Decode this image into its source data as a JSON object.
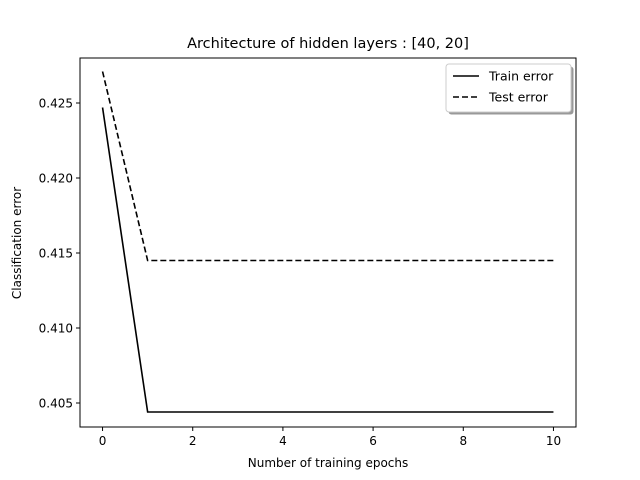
{
  "chart_data": {
    "type": "line",
    "title": "Architecture of hidden layers : [40, 20]",
    "xlabel": "Number of training epochs",
    "ylabel": "Classification error",
    "xlim": [
      -0.5,
      10.5
    ],
    "ylim": [
      0.4034,
      0.428
    ],
    "xticks": [
      0,
      2,
      4,
      6,
      8,
      10
    ],
    "xtick_labels": [
      "0",
      "2",
      "4",
      "6",
      "8",
      "10"
    ],
    "yticks": [
      0.405,
      0.41,
      0.415,
      0.42,
      0.425
    ],
    "ytick_labels": [
      "0.405",
      "0.410",
      "0.415",
      "0.420",
      "0.425"
    ],
    "grid": false,
    "legend": "top-right",
    "x": [
      0,
      1,
      2,
      3,
      4,
      5,
      6,
      7,
      8,
      9,
      10
    ],
    "series": [
      {
        "name": "Train error",
        "style": "solid",
        "color": "#000000",
        "values": [
          0.4247,
          0.4044,
          0.4044,
          0.4044,
          0.4044,
          0.4044,
          0.4044,
          0.4044,
          0.4044,
          0.4044,
          0.4044
        ]
      },
      {
        "name": "Test error",
        "style": "dashed",
        "color": "#000000",
        "values": [
          0.4271,
          0.4145,
          0.4145,
          0.4145,
          0.4145,
          0.4145,
          0.4145,
          0.4145,
          0.4145,
          0.4145,
          0.4145
        ]
      }
    ]
  }
}
